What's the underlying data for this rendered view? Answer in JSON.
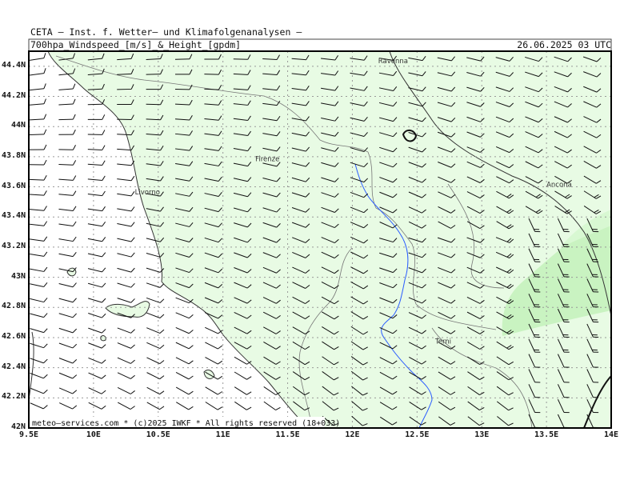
{
  "header": {
    "source": "CETA — Inst. f. Wetter— und Klimafolgenanalysen —",
    "product": "700hpa_Windspeed_[m/s]_&_Height_[gpdm]",
    "valid": "26.06.2025 03 UTC"
  },
  "footer": {
    "credit": "meteo—services.com * (c)2025 IWKF * All rights reserved (18+033)"
  },
  "colors": {
    "fill_light": "#e8fbe4",
    "fill_medium": "#c5f2bd",
    "grid": "#999999",
    "river": "#2a5cff"
  },
  "axes": {
    "lon_ticks": [
      "9.5E",
      "10E",
      "10.5E",
      "11E",
      "11.5E",
      "12E",
      "12.5E",
      "13E",
      "13.5E",
      "14E"
    ],
    "lat_ticks": [
      "44.4N",
      "44.2N",
      "44N",
      "43.8N",
      "43.6N",
      "43.4N",
      "43.2N",
      "43N",
      "42.8N",
      "42.6N",
      "42.4N",
      "42.2N",
      "42N"
    ],
    "lon_range": [
      9.5,
      14.0
    ],
    "lat_range": [
      42.0,
      44.5
    ]
  },
  "cities": [
    {
      "name": "Ravenna",
      "lon": 12.2,
      "lat": 44.42
    },
    {
      "name": "Firenze",
      "lon": 11.25,
      "lat": 43.77
    },
    {
      "name": "Livorno",
      "lon": 10.32,
      "lat": 43.55
    },
    {
      "name": "Ancona",
      "lon": 13.5,
      "lat": 43.6
    },
    {
      "name": "Terni",
      "lon": 12.64,
      "lat": 42.56
    }
  ]
}
